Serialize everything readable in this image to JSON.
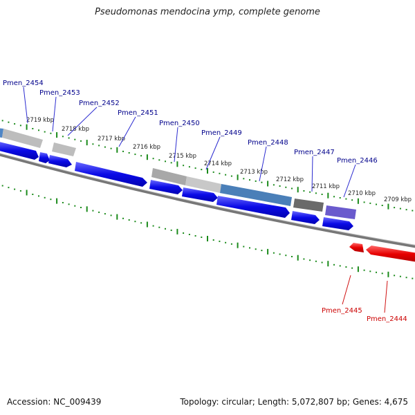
{
  "title": "Pseudomonas mendocina ymp, complete genome",
  "footer": {
    "accession": "Accession: NC_009439",
    "summary": "Topology: circular; Length: 5,072,807 bp; Genes: 4,675"
  },
  "colors": {
    "forward_gene": "#0a0ae6",
    "reverse_gene": "#e60000",
    "forward_label": "#00008b",
    "reverse_label": "#cc0000",
    "tick": "#1a8a1a",
    "backbone": "#808080"
  },
  "kbp_labels": [
    "2719 kbp",
    "2718 kbp",
    "2717 kbp",
    "2716 kbp",
    "2715 kbp",
    "2714 kbp",
    "2713 kbp",
    "2712 kbp",
    "2711 kbp",
    "2710 kbp",
    "2709 kbp"
  ],
  "gene_labels_forward": [
    "Pmen_2454",
    "Pmen_2453",
    "Pmen_2452",
    "Pmen_2451",
    "Pmen_2450",
    "Pmen_2449",
    "Pmen_2448",
    "Pmen_2447",
    "Pmen_2446"
  ],
  "gene_labels_reverse": [
    "Pmen_2445",
    "Pmen_2444"
  ]
}
